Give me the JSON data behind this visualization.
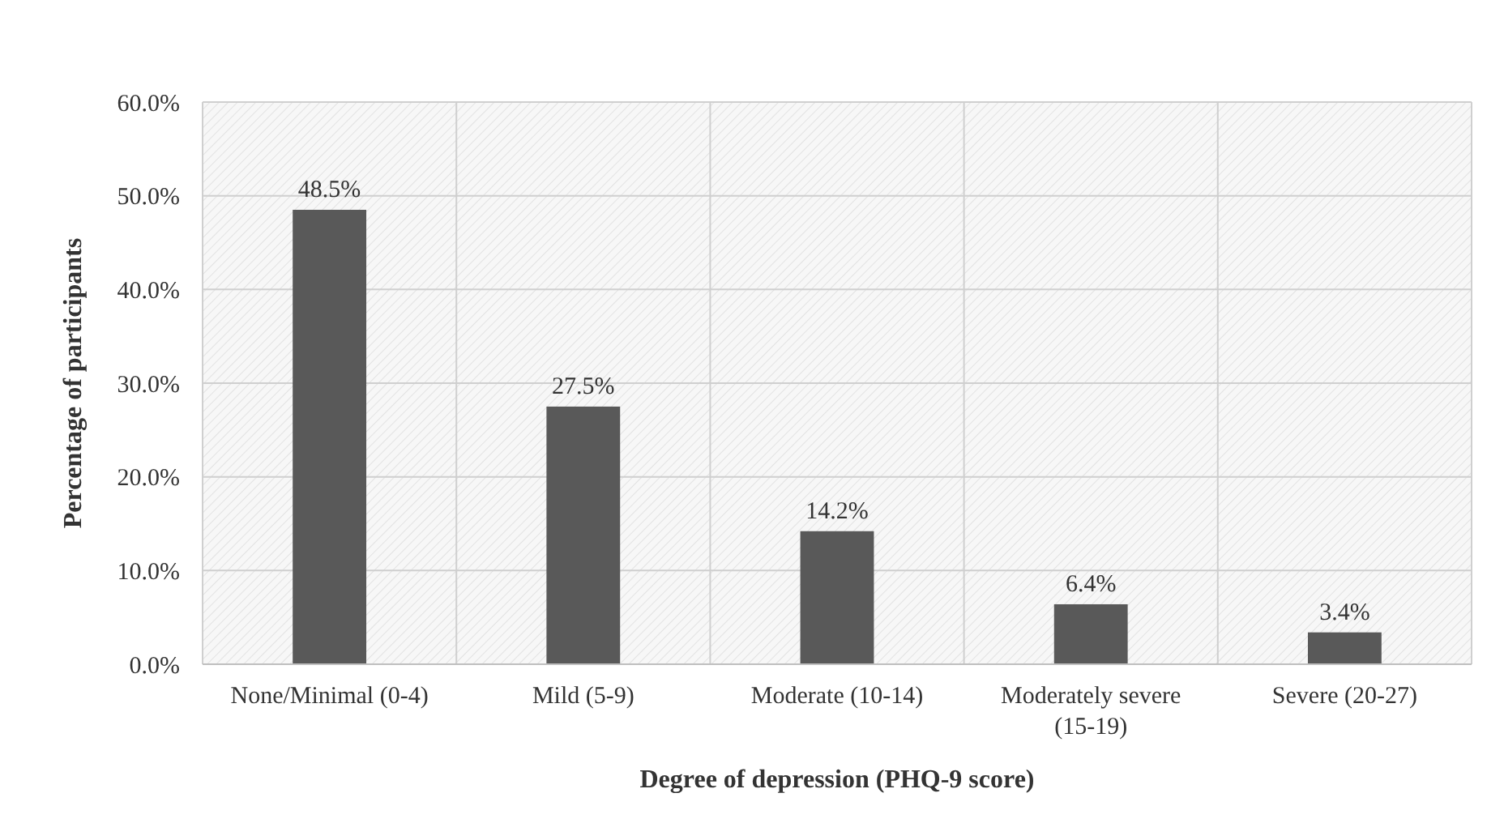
{
  "chart_data": {
    "type": "bar",
    "xlabel": "Degree of depression (PHQ-9 score)",
    "ylabel": "Percentage of participants",
    "categories": [
      "None/Minimal (0-4)",
      "Mild (5-9)",
      "Moderate (10-14)",
      "Moderately severe (15-19)",
      "Severe (20-27)"
    ],
    "values": [
      48.5,
      27.5,
      14.2,
      6.4,
      3.4
    ],
    "value_labels": [
      "48.5%",
      "27.5%",
      "14.2%",
      "6.4%",
      "3.4%"
    ],
    "color": "#595959",
    "ylim": [
      0,
      60
    ],
    "yticks": [
      {
        "value": 0,
        "label": "0.0%"
      },
      {
        "value": 10,
        "label": "10.0%"
      },
      {
        "value": 20,
        "label": "20.0%"
      },
      {
        "value": 30,
        "label": "30.0%"
      },
      {
        "value": 40,
        "label": "40.0%"
      },
      {
        "value": 50,
        "label": "50.0%"
      },
      {
        "value": 60,
        "label": "60.0%"
      }
    ],
    "grid": true
  }
}
